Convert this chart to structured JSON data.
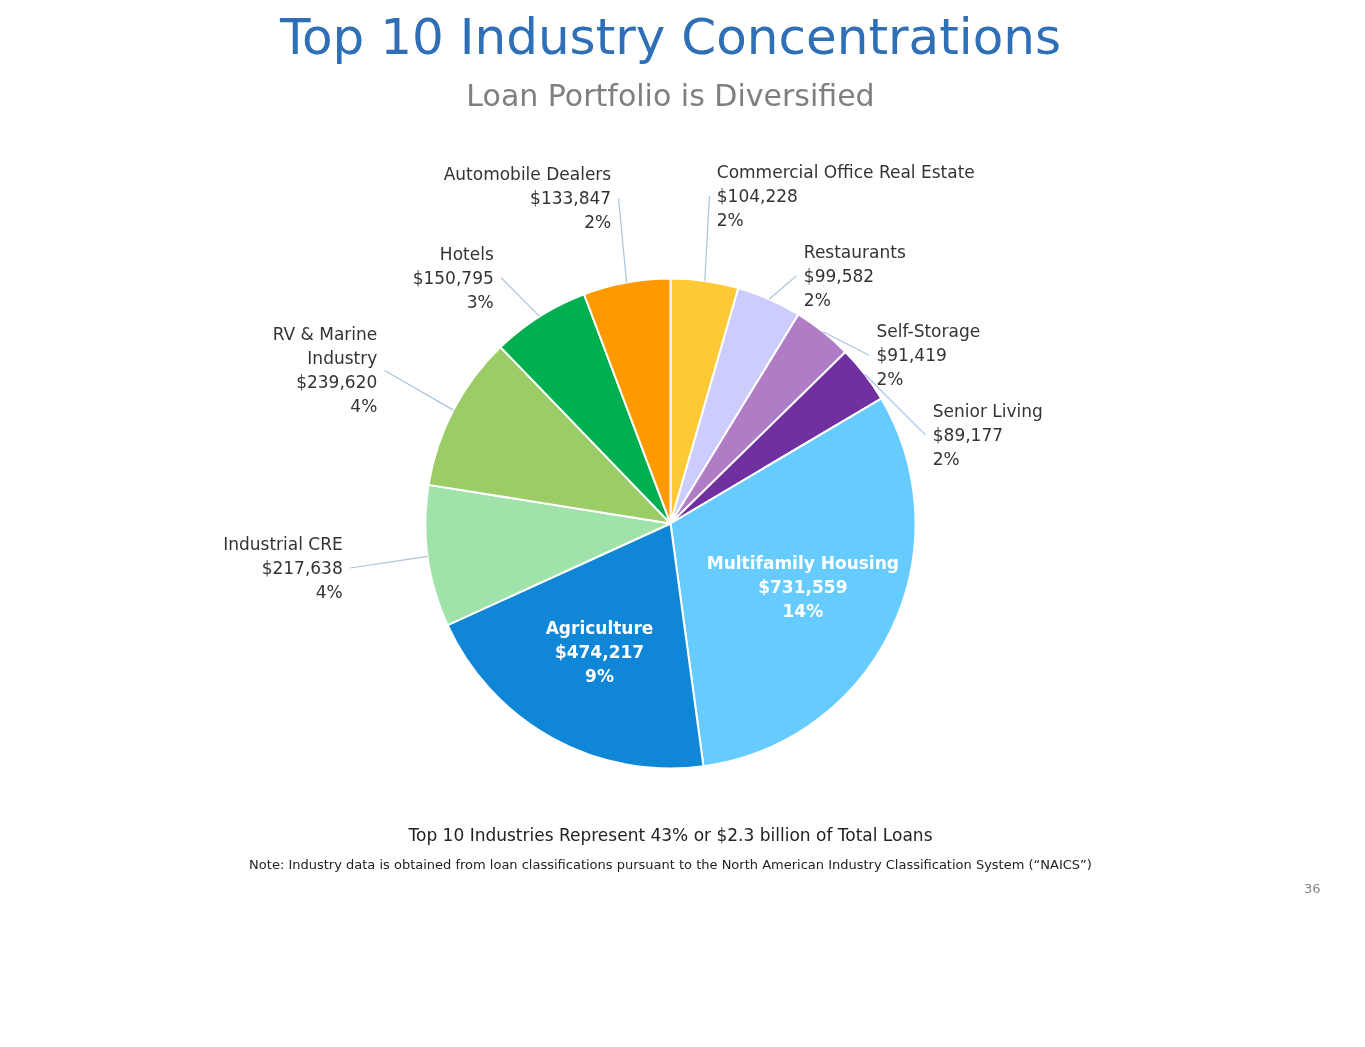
{
  "chart_data": {
    "type": "pie",
    "title": "Top 10 Industry Concentrations",
    "subtitle": "Loan Portfolio is Diversified",
    "categories": [
      "Commercial Office Real Estate",
      "Restaurants",
      "Self-Storage",
      "Senior Living",
      "Multifamily Housing",
      "Agriculture",
      "Industrial CRE",
      "RV & Marine\nIndustry",
      "Hotels",
      "Automobile Dealers"
    ],
    "values": [
      104228,
      99582,
      91419,
      89177,
      731559,
      474217,
      217638,
      239620,
      150795,
      133847
    ],
    "colors": [
      "#ffc936",
      "#ccccff",
      "#b07cc6",
      "#7030a0",
      "#66ccff",
      "#0f86d6",
      "#9fe3aa",
      "#9bcc66",
      "#00b050",
      "#ff9900"
    ],
    "value_labels": [
      "$104,228\n2%",
      "$99,582\n2%",
      "$91,419\n2%",
      "$89,177\n2%",
      "$731,559\n14%",
      "$474,217\n9%",
      "$217,638\n4%",
      "$239,620\n4%",
      "$150,795\n3%",
      "$133,847\n2%"
    ],
    "annotations": [
      "Top 10 Industries Represent 43% or $2.3 billion of Total Loans",
      "Note: Industry data is obtained from loan classifications pursuant to the North American Industry Classification System (“NAICS”)",
      "36"
    ]
  }
}
